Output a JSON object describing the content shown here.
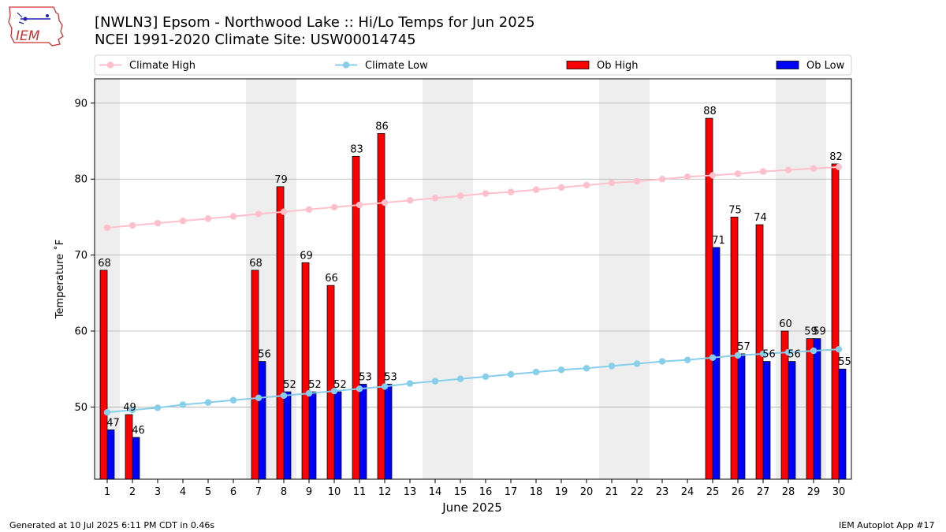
{
  "header": {
    "title_line1": "[NWLN3] Epsom - Northwood Lake :: Hi/Lo Temps for Jun 2025",
    "title_line2": "NCEI 1991-2020 Climate Site: USW00014745"
  },
  "logo": {
    "text": "IEM"
  },
  "footer": {
    "generated": "Generated at 10 Jul 2025 6:11 PM CDT in 0.46s",
    "app": "IEM Autoplot App #17"
  },
  "chart_data": {
    "type": "bar",
    "xlabel": "June 2025",
    "ylabel": "Temperature ˚F",
    "ylim": [
      40.5,
      93.2
    ],
    "yticks": [
      50,
      60,
      70,
      80,
      90
    ],
    "categories": [
      "1",
      "2",
      "3",
      "4",
      "5",
      "6",
      "7",
      "8",
      "9",
      "10",
      "11",
      "12",
      "13",
      "14",
      "15",
      "16",
      "17",
      "18",
      "19",
      "20",
      "21",
      "22",
      "23",
      "24",
      "25",
      "26",
      "27",
      "28",
      "29",
      "30"
    ],
    "weekend_days": [
      1,
      7,
      8,
      14,
      15,
      21,
      22,
      28,
      29
    ],
    "grid": "horizontal",
    "legend_position": "top",
    "colors": {
      "climate_high": "#ffc0cb",
      "climate_low": "#87ceeb",
      "ob_high": "#ff0000",
      "ob_low": "#0000ff",
      "weekend_shade": "#eeeeee",
      "grid": "#b0b0b0"
    },
    "series": [
      {
        "name": "Climate High",
        "kind": "line",
        "values": [
          73.6,
          73.9,
          74.2,
          74.5,
          74.8,
          75.1,
          75.4,
          75.7,
          76.0,
          76.3,
          76.6,
          76.9,
          77.2,
          77.5,
          77.8,
          78.1,
          78.3,
          78.6,
          78.9,
          79.2,
          79.5,
          79.7,
          80.0,
          80.3,
          80.5,
          80.7,
          81.0,
          81.2,
          81.4,
          81.6
        ]
      },
      {
        "name": "Climate Low",
        "kind": "line",
        "values": [
          49.3,
          49.6,
          49.9,
          50.3,
          50.6,
          50.9,
          51.2,
          51.5,
          51.8,
          52.1,
          52.4,
          52.7,
          53.1,
          53.4,
          53.7,
          54.0,
          54.3,
          54.6,
          54.9,
          55.1,
          55.4,
          55.7,
          56.0,
          56.2,
          56.5,
          56.8,
          57.0,
          57.2,
          57.4,
          57.6
        ]
      },
      {
        "name": "Ob High",
        "kind": "bar",
        "values": [
          68,
          49,
          null,
          null,
          null,
          null,
          68,
          79,
          69,
          66,
          83,
          86,
          null,
          null,
          null,
          null,
          null,
          null,
          null,
          null,
          null,
          null,
          null,
          null,
          88,
          75,
          74,
          60,
          59,
          82
        ]
      },
      {
        "name": "Ob Low",
        "kind": "bar",
        "values": [
          47,
          46,
          null,
          null,
          null,
          null,
          56,
          52,
          52,
          52,
          53,
          53,
          null,
          null,
          null,
          null,
          null,
          null,
          null,
          null,
          null,
          null,
          null,
          null,
          71,
          57,
          56,
          56,
          59,
          55
        ]
      }
    ]
  }
}
